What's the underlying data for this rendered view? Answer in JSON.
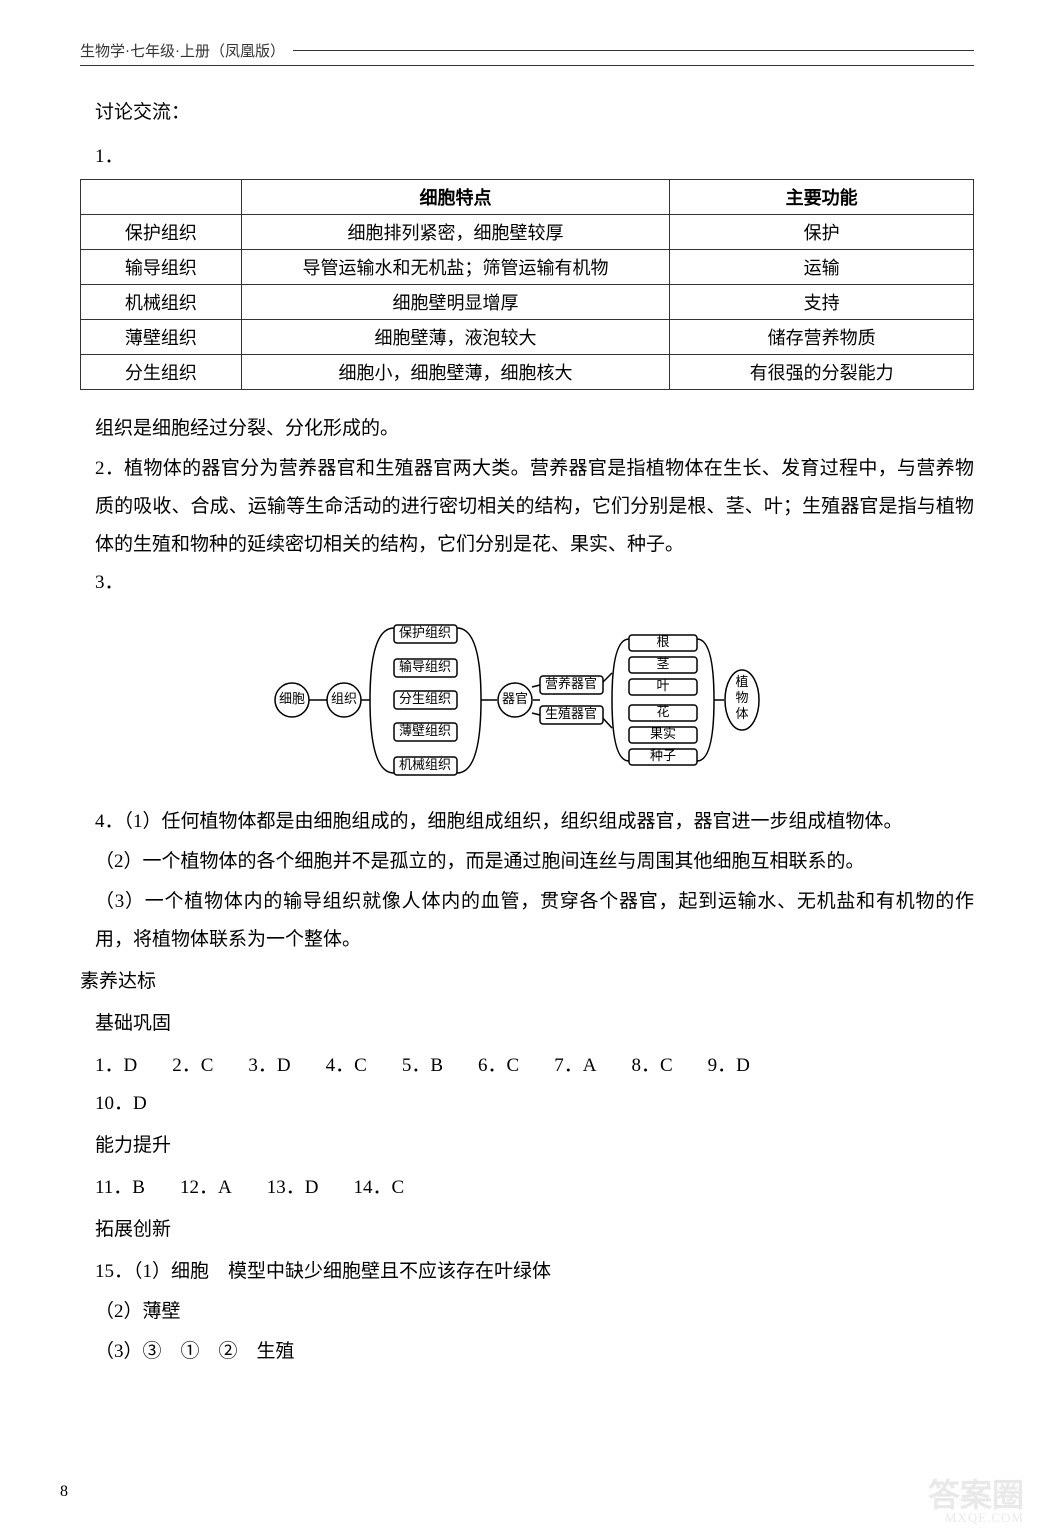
{
  "header": {
    "text": "生物学·七年级·上册（凤凰版）"
  },
  "discuss": {
    "title": "讨论交流：",
    "n1": "1．",
    "table": {
      "headers": [
        "",
        "细胞特点",
        "主要功能"
      ],
      "rows": [
        [
          "保护组织",
          "细胞排列紧密，细胞壁较厚",
          "保护"
        ],
        [
          "输导组织",
          "导管运输水和无机盐；筛管运输有机物",
          "运输"
        ],
        [
          "机械组织",
          "细胞壁明显增厚",
          "支持"
        ],
        [
          "薄壁组织",
          "细胞壁薄，液泡较大",
          "储存营养物质"
        ],
        [
          "分生组织",
          "细胞小，细胞壁薄，细胞核大",
          "有很强的分裂能力"
        ]
      ]
    },
    "para_after_table": "组织是细胞经过分裂、分化形成的。",
    "para2": "2．植物体的器官分为营养器官和生殖器官两大类。营养器官是指植物体在生长、发育过程中，与营养物质的吸收、合成、运输等生命活动的进行密切相关的结构，它们分别是根、茎、叶；生殖器官是指与植物体的生殖和物种的延续密切相关的结构，它们分别是花、果实、种子。",
    "n3": "3．",
    "diagram": {
      "circles": [
        {
          "id": "cell",
          "label": "细胞",
          "r": 18
        },
        {
          "id": "tissue",
          "label": "组织",
          "r": 18
        },
        {
          "id": "organ",
          "label": "器官",
          "r": 18
        }
      ],
      "tissue_boxes": [
        "保护组织",
        "输导组织",
        "分生组织",
        "薄壁组织",
        "机械组织"
      ],
      "organ_cats": [
        "营养器官",
        "生殖器官"
      ],
      "organs_top": [
        "根",
        "茎",
        "叶"
      ],
      "organs_bot": [
        "花",
        "果实",
        "种子"
      ],
      "plant_body": "植物体",
      "box_stroke": "#000000",
      "box_fill": "#ffffff"
    },
    "para4_1": "4．（1）任何植物体都是由细胞组成的，细胞组成组织，组织组成器官，器官进一步组成植物体。",
    "para4_2": "（2）一个植物体的各个细胞并不是孤立的，而是通过胞间连丝与周围其他细胞互相联系的。",
    "para4_3": "（3）一个植物体内的输导组织就像人体内的血管，贯穿各个器官，起到运输水、无机盐和有机物的作用，将植物体联系为一个整体。"
  },
  "standard": {
    "title": "素养达标",
    "basic": {
      "label": "基础巩固",
      "row1": [
        {
          "n": "1．",
          "a": "D"
        },
        {
          "n": "2．",
          "a": "C"
        },
        {
          "n": "3．",
          "a": "D"
        },
        {
          "n": "4．",
          "a": "C"
        },
        {
          "n": "5．",
          "a": "B"
        },
        {
          "n": "6．",
          "a": "C"
        },
        {
          "n": "7．",
          "a": "A"
        },
        {
          "n": "8．",
          "a": "C"
        },
        {
          "n": "9．",
          "a": "D"
        }
      ],
      "row2": [
        {
          "n": "10．",
          "a": "D"
        }
      ]
    },
    "ability": {
      "label": "能力提升",
      "row1": [
        {
          "n": "11．",
          "a": "B"
        },
        {
          "n": "12．",
          "a": "A"
        },
        {
          "n": "13．",
          "a": "D"
        },
        {
          "n": "14．",
          "a": "C"
        }
      ]
    },
    "ext": {
      "label": "拓展创新",
      "q15_1": "15．（1）细胞　模型中缺少细胞壁且不应该存在叶绿体",
      "q15_2": "（2）薄壁",
      "q15_3": "（3）③　①　②　生殖"
    }
  },
  "page_num": "8",
  "watermark": {
    "main": "答案圈",
    "sub": "MXQE.COM"
  }
}
